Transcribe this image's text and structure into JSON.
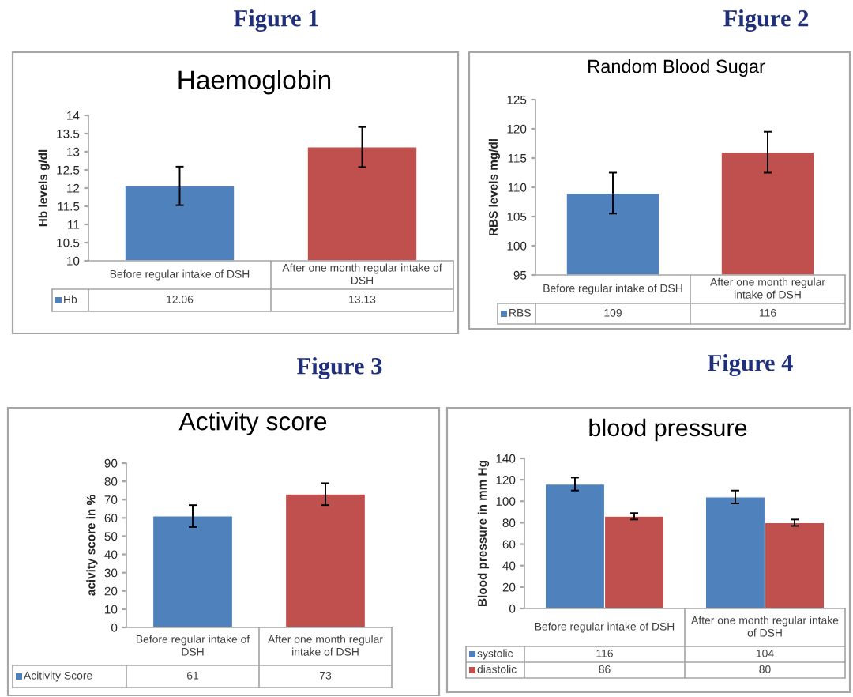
{
  "chart_data": [
    {
      "type": "bar",
      "title": "Haemoglobin",
      "ylabel": "Hb levels g/dl",
      "annotations": [
        "Figure 1"
      ],
      "categories": [
        "Before regular intake of DSH",
        "After one month regular intake of DSH"
      ],
      "series": [
        {
          "name": "Hb",
          "color": "#4f81bd",
          "colors": [
            "#4f81bd",
            "#c0504d"
          ],
          "values": [
            12.06,
            13.13
          ],
          "errors": [
            0.53,
            0.55
          ]
        }
      ],
      "ylim": [
        10,
        14
      ],
      "yticks": [
        10,
        10.5,
        11,
        11.5,
        12,
        12.5,
        13,
        13.5,
        14
      ],
      "grid": false,
      "legend": "bottom",
      "data_labels": true
    },
    {
      "type": "bar",
      "title": "Random Blood Sugar",
      "ylabel": "RBS levels mg/dl",
      "annotations": [
        "Figure 2"
      ],
      "categories": [
        "Before regular intake of DSH",
        "After one month regular intake of DSH"
      ],
      "series": [
        {
          "name": "RBS",
          "color": "#4f81bd",
          "colors": [
            "#4f81bd",
            "#c0504d"
          ],
          "values": [
            109,
            116
          ],
          "errors": [
            3.5,
            3.5
          ]
        }
      ],
      "ylim": [
        95,
        125
      ],
      "yticks": [
        95,
        100,
        105,
        110,
        115,
        120,
        125
      ],
      "grid": false,
      "legend": "bottom",
      "data_labels": true
    },
    {
      "type": "bar",
      "title": "Activity score",
      "ylabel": "acivity score in %",
      "annotations": [
        "Figure 3"
      ],
      "categories": [
        "Before regular intake of DSH",
        "After one month regular intake of DSH"
      ],
      "series": [
        {
          "name": "Acitivity Score",
          "color": "#4f81bd",
          "colors": [
            "#4f81bd",
            "#c0504d"
          ],
          "values": [
            61,
            73
          ],
          "errors": [
            6,
            6
          ]
        }
      ],
      "ylim": [
        0,
        90
      ],
      "yticks": [
        0,
        10,
        20,
        30,
        40,
        50,
        60,
        70,
        80,
        90
      ],
      "grid": false,
      "legend": "bottom",
      "data_labels": true
    },
    {
      "type": "bar",
      "title": "blood pressure",
      "ylabel": "Blood pressure in mm Hg",
      "annotations": [
        "Figure 4"
      ],
      "categories": [
        "Before regular intake of DSH",
        "After one month regular intake of DSH"
      ],
      "series": [
        {
          "name": "systolic",
          "color": "#4f81bd",
          "values": [
            116,
            104
          ],
          "errors": [
            6,
            6
          ]
        },
        {
          "name": "diastolic",
          "color": "#c0504d",
          "values": [
            86,
            80
          ],
          "errors": [
            3,
            3
          ]
        }
      ],
      "ylim": [
        0,
        140
      ],
      "yticks": [
        0,
        20,
        40,
        60,
        80,
        100,
        120,
        140
      ],
      "grid": false,
      "legend": "bottom",
      "data_labels": true
    }
  ]
}
